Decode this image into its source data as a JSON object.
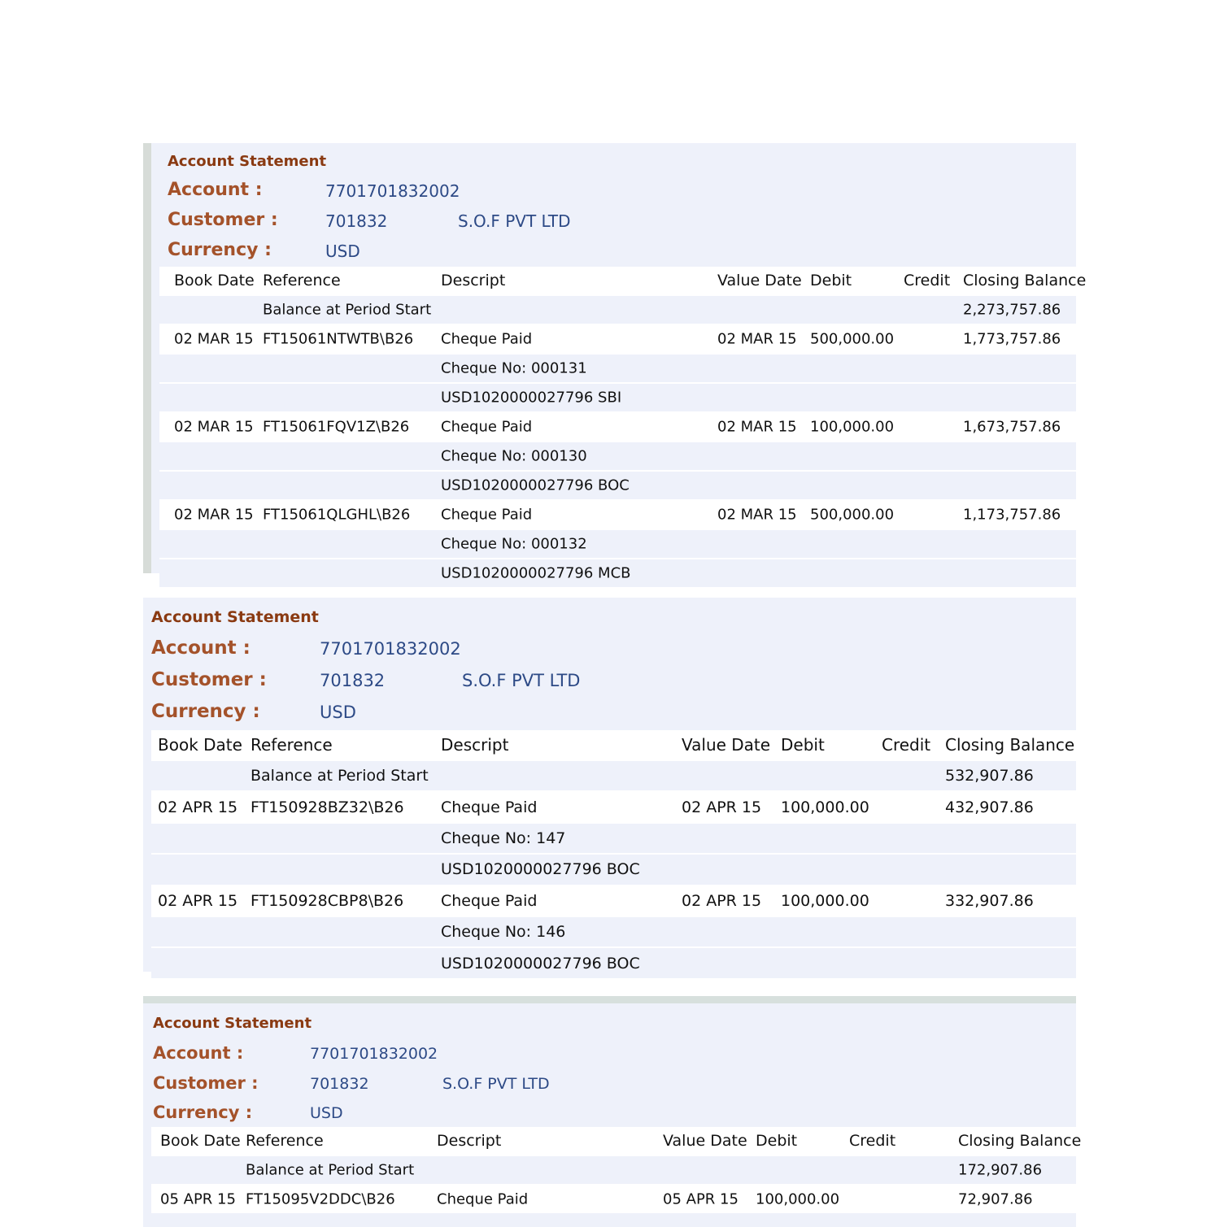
{
  "statements": [
    {
      "title": "Account Statement",
      "account_label": "Account :",
      "account": "7701701832002",
      "customer_label": "Customer :",
      "customer_id": "701832",
      "customer_name": "S.O.F PVT LTD",
      "currency_label": "Currency :",
      "currency": "USD",
      "columns": [
        "Book Date",
        "Reference",
        "Descript",
        "Value Date",
        "Debit",
        "Credit",
        "Closing Balance"
      ],
      "rows": [
        [
          "",
          "Balance at Period Start",
          "",
          "",
          "",
          "",
          "2,273,757.86"
        ],
        [
          "02 MAR 15",
          "FT15061NTWTB\\B26",
          "Cheque Paid",
          "02 MAR 15",
          "500,000.00",
          "",
          "1,773,757.86"
        ],
        [
          "",
          "",
          "Cheque No: 000131",
          "",
          "",
          "",
          ""
        ],
        [
          "",
          "",
          "USD1020000027796 SBI",
          "",
          "",
          "",
          ""
        ],
        [
          "02 MAR 15",
          "FT15061FQV1Z\\B26",
          "Cheque Paid",
          "02 MAR 15",
          "100,000.00",
          "",
          "1,673,757.86"
        ],
        [
          "",
          "",
          "Cheque No: 000130",
          "",
          "",
          "",
          ""
        ],
        [
          "",
          "",
          "USD1020000027796 BOC",
          "",
          "",
          "",
          ""
        ],
        [
          "02 MAR 15",
          "FT15061QLGHL\\B26",
          "Cheque Paid",
          "02 MAR 15",
          "500,000.00",
          "",
          "1,173,757.86"
        ],
        [
          "",
          "",
          "Cheque No: 000132",
          "",
          "",
          "",
          ""
        ],
        [
          "",
          "",
          "USD1020000027796 MCB",
          "",
          "",
          "",
          ""
        ]
      ]
    },
    {
      "title": "Account Statement",
      "account_label": "Account :",
      "account": "7701701832002",
      "customer_label": "Customer :",
      "customer_id": "701832",
      "customer_name": "S.O.F PVT LTD",
      "currency_label": "Currency :",
      "currency": "USD",
      "columns": [
        "Book Date",
        "Reference",
        "Descript",
        "Value Date",
        "Debit",
        "Credit",
        "Closing Balance"
      ],
      "rows": [
        [
          "",
          "Balance at Period Start",
          "",
          "",
          "",
          "",
          "532,907.86"
        ],
        [
          "02 APR 15",
          "FT150928BZ32\\B26",
          "Cheque Paid",
          "02 APR 15",
          "100,000.00",
          "",
          "432,907.86"
        ],
        [
          "",
          "",
          "Cheque No: 147",
          "",
          "",
          "",
          ""
        ],
        [
          "",
          "",
          "USD1020000027796 BOC",
          "",
          "",
          "",
          ""
        ],
        [
          "02 APR 15",
          "FT150928CBP8\\B26",
          "Cheque Paid",
          "02 APR 15",
          "100,000.00",
          "",
          "332,907.86"
        ],
        [
          "",
          "",
          "Cheque No: 146",
          "",
          "",
          "",
          ""
        ],
        [
          "",
          "",
          "USD1020000027796 BOC",
          "",
          "",
          "",
          ""
        ]
      ]
    },
    {
      "title": "Account Statement",
      "account_label": "Account :",
      "account": "7701701832002",
      "customer_label": "Customer :",
      "customer_id": "701832",
      "customer_name": "S.O.F PVT LTD",
      "currency_label": "Currency :",
      "currency": "USD",
      "columns": [
        "Book Date",
        "Reference",
        "Descript",
        "Value Date",
        "Debit",
        "Credit",
        "Closing Balance"
      ],
      "rows": [
        [
          "",
          "Balance at Period Start",
          "",
          "",
          "",
          "",
          "172,907.86"
        ],
        [
          "05 APR 15",
          "FT15095V2DDC\\B26",
          "Cheque Paid",
          "05 APR 15",
          "100,000.00",
          "",
          "72,907.86"
        ]
      ]
    }
  ]
}
